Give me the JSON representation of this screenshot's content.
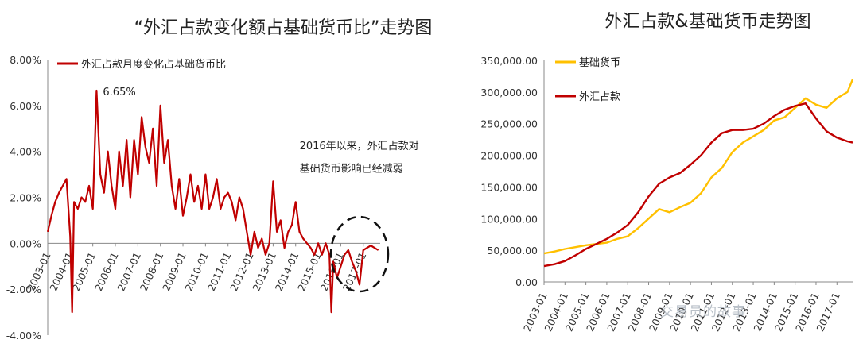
{
  "watermark": "交易员的故事",
  "chart_data": [
    {
      "type": "line",
      "title": "“外汇占款变化额占基础货币比”走势图",
      "ylim": [
        -4,
        8
      ],
      "y_ticks": [
        "-4.00%",
        "-2.00%",
        "0.00%",
        "2.00%",
        "4.00%",
        "6.00%",
        "8.00%"
      ],
      "x_ticks": [
        "2003-01",
        "2004-01",
        "2005-01",
        "2006-01",
        "2007-01",
        "2008-01",
        "2009-01",
        "2010-01",
        "2011-01",
        "2012-01",
        "2013-01",
        "2014-01",
        "2015-01",
        "2016-01",
        "2017-01"
      ],
      "legend_position": "top-left",
      "color": "#c00000",
      "series": [
        {
          "name": "外汇占款月度变化占基础货币比",
          "color": "#c00000",
          "x": [
            "2003-01",
            "2003-03",
            "2003-05",
            "2003-07",
            "2003-09",
            "2003-11",
            "2004-01",
            "2004-02",
            "2004-03",
            "2004-05",
            "2004-07",
            "2004-09",
            "2004-11",
            "2005-01",
            "2005-03",
            "2005-05",
            "2005-07",
            "2005-09",
            "2005-11",
            "2006-01",
            "2006-03",
            "2006-05",
            "2006-07",
            "2006-09",
            "2006-11",
            "2007-01",
            "2007-03",
            "2007-05",
            "2007-07",
            "2007-09",
            "2007-11",
            "2008-01",
            "2008-03",
            "2008-05",
            "2008-07",
            "2008-09",
            "2008-11",
            "2009-01",
            "2009-03",
            "2009-05",
            "2009-07",
            "2009-09",
            "2009-11",
            "2010-01",
            "2010-03",
            "2010-05",
            "2010-07",
            "2010-09",
            "2010-11",
            "2011-01",
            "2011-03",
            "2011-05",
            "2011-07",
            "2011-09",
            "2011-11",
            "2012-01",
            "2012-03",
            "2012-05",
            "2012-07",
            "2012-09",
            "2012-11",
            "2013-01",
            "2013-03",
            "2013-05",
            "2013-07",
            "2013-09",
            "2013-11",
            "2014-01",
            "2014-03",
            "2014-05",
            "2014-07",
            "2014-09",
            "2014-11",
            "2015-01",
            "2015-03",
            "2015-05",
            "2015-07",
            "2015-08",
            "2015-09",
            "2015-11",
            "2016-01",
            "2016-03",
            "2016-05",
            "2016-07",
            "2016-09",
            "2016-11",
            "2017-01",
            "2017-03",
            "2017-05",
            "2017-07",
            "2017-09"
          ],
          "values": [
            0.5,
            1.2,
            1.8,
            2.2,
            2.5,
            2.8,
            0.3,
            -3.0,
            1.8,
            1.5,
            2.0,
            1.8,
            2.5,
            1.5,
            6.65,
            3.0,
            2.2,
            4.0,
            2.5,
            1.5,
            4.0,
            2.5,
            4.5,
            2.0,
            4.5,
            3.0,
            5.5,
            4.2,
            3.5,
            5.0,
            2.5,
            6.0,
            3.5,
            4.5,
            2.5,
            1.5,
            2.8,
            1.2,
            2.0,
            3.0,
            1.8,
            2.5,
            1.5,
            3.0,
            1.5,
            2.0,
            2.8,
            1.5,
            2.0,
            2.2,
            1.8,
            1.0,
            2.0,
            1.5,
            0.5,
            -0.5,
            0.5,
            -0.2,
            0.2,
            -0.5,
            0.0,
            2.7,
            0.5,
            1.0,
            -0.2,
            0.5,
            0.8,
            1.8,
            0.5,
            0.2,
            0.0,
            -0.2,
            -0.5,
            0.0,
            -0.5,
            0.0,
            -0.5,
            -3.0,
            -0.8,
            -1.5,
            -1.0,
            -0.5,
            -0.3,
            -0.8,
            -1.2,
            -1.8,
            -0.3,
            -0.2,
            -0.1,
            -0.2,
            -0.3
          ]
        }
      ],
      "annotations": [
        {
          "text": "6.65%",
          "x": "2005-03",
          "y": 6.65
        },
        {
          "text": "2016年以来，外汇占款对",
          "x": "2015-08",
          "y": 4.1
        },
        {
          "text": "基础货币影响已经减弱",
          "x": "2015-08",
          "y": 3.1
        }
      ]
    },
    {
      "type": "line",
      "title": "外汇占款&基础货币走势图",
      "ylim": [
        0,
        350000
      ],
      "y_ticks": [
        "0.00",
        "50,000.00",
        "100,000.00",
        "150,000.00",
        "200,000.00",
        "250,000.00",
        "300,000.00",
        "350,000.00"
      ],
      "x_ticks": [
        "2003-01",
        "2004-01",
        "2005-01",
        "2006-01",
        "2007-01",
        "2008-01",
        "2009-01",
        "2010-01",
        "2011-01",
        "2012-01",
        "2013-01",
        "2014-01",
        "2015-01",
        "2016-01",
        "2017-01"
      ],
      "legend_position": "top-left",
      "series": [
        {
          "name": "基础货币",
          "color": "#ffc000",
          "x": [
            "2003-01",
            "2003-07",
            "2004-01",
            "2004-07",
            "2005-01",
            "2005-07",
            "2006-01",
            "2006-07",
            "2007-01",
            "2007-07",
            "2008-01",
            "2008-07",
            "2009-01",
            "2009-07",
            "2010-01",
            "2010-07",
            "2011-01",
            "2011-07",
            "2012-01",
            "2012-07",
            "2013-01",
            "2013-07",
            "2014-01",
            "2014-07",
            "2015-01",
            "2015-07",
            "2016-01",
            "2016-07",
            "2017-01",
            "2017-07",
            "2017-10"
          ],
          "values": [
            45000,
            48000,
            52000,
            55000,
            58000,
            60000,
            62000,
            68000,
            72000,
            85000,
            100000,
            115000,
            110000,
            118000,
            125000,
            140000,
            165000,
            180000,
            205000,
            220000,
            230000,
            240000,
            255000,
            260000,
            275000,
            290000,
            280000,
            275000,
            290000,
            300000,
            320000
          ]
        },
        {
          "name": "外汇占款",
          "color": "#c00000",
          "x": [
            "2003-01",
            "2003-07",
            "2004-01",
            "2004-07",
            "2005-01",
            "2005-07",
            "2006-01",
            "2006-07",
            "2007-01",
            "2007-07",
            "2008-01",
            "2008-07",
            "2009-01",
            "2009-07",
            "2010-01",
            "2010-07",
            "2011-01",
            "2011-07",
            "2012-01",
            "2012-07",
            "2013-01",
            "2013-07",
            "2014-01",
            "2014-07",
            "2015-01",
            "2015-07",
            "2016-01",
            "2016-07",
            "2017-01",
            "2017-07",
            "2017-10"
          ],
          "values": [
            25000,
            28000,
            33000,
            42000,
            52000,
            60000,
            68000,
            78000,
            90000,
            110000,
            135000,
            155000,
            165000,
            172000,
            185000,
            200000,
            220000,
            235000,
            240000,
            240000,
            242000,
            250000,
            262000,
            272000,
            278000,
            282000,
            258000,
            238000,
            228000,
            222000,
            220000
          ]
        }
      ]
    }
  ]
}
